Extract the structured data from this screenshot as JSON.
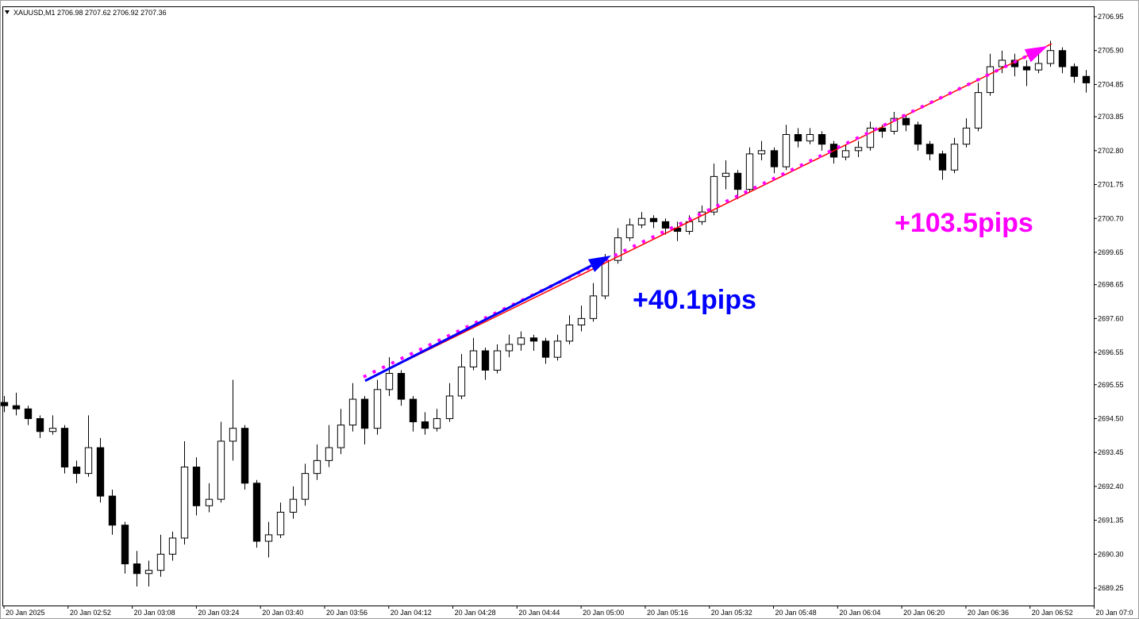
{
  "chart_data": {
    "type": "candlestick",
    "header": "XAUUSD,M1  2706.98 2707.62 2706.92 2707.36",
    "xlim": [
      155.6,
      427.9
    ],
    "ylim": [
      2688.71,
      2707.27
    ],
    "xticks": [
      {
        "value": 156,
        "label": "20 Jan 2025"
      },
      {
        "value": 172,
        "label": "20 Jan 02:52"
      },
      {
        "value": 188,
        "label": "20 Jan 03:08"
      },
      {
        "value": 204,
        "label": "20 Jan 03:24"
      },
      {
        "value": 220,
        "label": "20 Jan 03:40"
      },
      {
        "value": 236,
        "label": "20 Jan 03:56"
      },
      {
        "value": 252,
        "label": "20 Jan 04:12"
      },
      {
        "value": 268,
        "label": "20 Jan 04:28"
      },
      {
        "value": 284,
        "label": "20 Jan 04:44"
      },
      {
        "value": 300,
        "label": "20 Jan 05:00"
      },
      {
        "value": 316,
        "label": "20 Jan 05:16"
      },
      {
        "value": 332,
        "label": "20 Jan 05:32"
      },
      {
        "value": 348,
        "label": "20 Jan 05:48"
      },
      {
        "value": 364,
        "label": "20 Jan 06:04"
      },
      {
        "value": 380,
        "label": "20 Jan 06:20"
      },
      {
        "value": 396,
        "label": "20 Jan 06:36"
      },
      {
        "value": 412,
        "label": "20 Jan 06:52"
      },
      {
        "value": 428,
        "label": "20 Jan 07:0"
      }
    ],
    "yticks": [
      2706.95,
      {
        "value": 2705.9,
        "label": "2705.90"
      },
      2704.85,
      2703.85,
      {
        "value": 2702.8,
        "label": "2702.80"
      },
      2701.75,
      {
        "value": 2700.7,
        "label": "2700.70"
      },
      2699.65,
      2698.65,
      {
        "value": 2697.6,
        "label": "2697.60"
      },
      2696.55,
      2695.55,
      {
        "value": 2694.5,
        "label": "2694.50"
      },
      2693.45,
      {
        "value": 2692.4,
        "label": "2692.40"
      },
      2691.35,
      {
        "value": 2690.3,
        "label": "2690.30"
      },
      2689.25
    ],
    "up_color": "#ffffff",
    "down_color": "#000000",
    "candles": [
      [
        156,
        2695.0,
        2695.2,
        2694.7,
        2694.9
      ],
      [
        159,
        2694.9,
        2695.3,
        2694.6,
        2694.8
      ],
      [
        162,
        2694.8,
        2694.9,
        2694.3,
        2694.5
      ],
      [
        165,
        2694.5,
        2694.6,
        2693.9,
        2694.1
      ],
      [
        168,
        2694.1,
        2694.6,
        2694.0,
        2694.2
      ],
      [
        171,
        2694.2,
        2694.3,
        2692.8,
        2693.0
      ],
      [
        174,
        2693.0,
        2693.2,
        2692.5,
        2692.8
      ],
      [
        177,
        2692.8,
        2694.6,
        2692.7,
        2693.6
      ],
      [
        180,
        2693.6,
        2693.9,
        2691.9,
        2692.1
      ],
      [
        183,
        2692.1,
        2692.3,
        2690.9,
        2691.2
      ],
      [
        186,
        2691.2,
        2691.3,
        2689.7,
        2690.0
      ],
      [
        189,
        2690.0,
        2690.4,
        2689.3,
        2689.7
      ],
      [
        192,
        2689.7,
        2690.1,
        2689.3,
        2689.8
      ],
      [
        195,
        2689.8,
        2690.9,
        2689.6,
        2690.3
      ],
      [
        198,
        2690.3,
        2691.0,
        2690.1,
        2690.8
      ],
      [
        201,
        2690.8,
        2693.8,
        2690.6,
        2693.0
      ],
      [
        204,
        2693.0,
        2693.3,
        2691.5,
        2691.8
      ],
      [
        207,
        2691.8,
        2692.5,
        2691.6,
        2692.0
      ],
      [
        210,
        2692.0,
        2694.4,
        2691.9,
        2693.8
      ],
      [
        213,
        2693.8,
        2695.7,
        2693.2,
        2694.2
      ],
      [
        216,
        2694.2,
        2694.3,
        2692.3,
        2692.5
      ],
      [
        219,
        2692.5,
        2692.6,
        2690.5,
        2690.7
      ],
      [
        222,
        2690.7,
        2691.3,
        2690.2,
        2690.9
      ],
      [
        225,
        2690.9,
        2691.9,
        2690.8,
        2691.6
      ],
      [
        228,
        2691.6,
        2692.4,
        2691.4,
        2692.0
      ],
      [
        231,
        2692.0,
        2693.1,
        2691.8,
        2692.8
      ],
      [
        234,
        2692.8,
        2693.7,
        2692.6,
        2693.2
      ],
      [
        237,
        2693.2,
        2694.3,
        2693.0,
        2693.6
      ],
      [
        240,
        2693.6,
        2694.8,
        2693.4,
        2694.3
      ],
      [
        243,
        2694.3,
        2695.6,
        2694.1,
        2695.1
      ],
      [
        246,
        2695.1,
        2695.2,
        2693.7,
        2694.2
      ],
      [
        249,
        2694.2,
        2695.7,
        2694.0,
        2695.4
      ],
      [
        252,
        2695.4,
        2696.4,
        2695.2,
        2695.9
      ],
      [
        255,
        2695.9,
        2696.0,
        2694.9,
        2695.1
      ],
      [
        258,
        2695.1,
        2695.2,
        2694.1,
        2694.4
      ],
      [
        261,
        2694.4,
        2694.7,
        2694.0,
        2694.2
      ],
      [
        264,
        2694.2,
        2694.8,
        2694.1,
        2694.5
      ],
      [
        267,
        2694.5,
        2695.6,
        2694.4,
        2695.2
      ],
      [
        270,
        2695.2,
        2696.5,
        2695.1,
        2696.1
      ],
      [
        273,
        2696.1,
        2697.0,
        2696.0,
        2696.6
      ],
      [
        276,
        2696.6,
        2696.7,
        2695.7,
        2696.0
      ],
      [
        279,
        2696.0,
        2696.8,
        2695.9,
        2696.6
      ],
      [
        282,
        2696.6,
        2697.1,
        2696.4,
        2696.8
      ],
      [
        285,
        2696.8,
        2697.2,
        2696.6,
        2697.0
      ],
      [
        288,
        2697.0,
        2697.1,
        2696.6,
        2696.9
      ],
      [
        291,
        2696.9,
        2697.0,
        2696.2,
        2696.4
      ],
      [
        294,
        2696.4,
        2697.1,
        2696.3,
        2696.9
      ],
      [
        297,
        2696.9,
        2697.7,
        2696.8,
        2697.4
      ],
      [
        300,
        2697.4,
        2698.0,
        2697.2,
        2697.6
      ],
      [
        303,
        2697.6,
        2698.7,
        2697.5,
        2698.3
      ],
      [
        306,
        2698.3,
        2699.6,
        2698.2,
        2699.4
      ],
      [
        309,
        2699.4,
        2700.4,
        2699.3,
        2700.1
      ],
      [
        312,
        2700.1,
        2700.7,
        2700.0,
        2700.5
      ],
      [
        315,
        2700.5,
        2700.9,
        2700.4,
        2700.7
      ],
      [
        318,
        2700.7,
        2700.8,
        2700.4,
        2700.6
      ],
      [
        321,
        2700.6,
        2700.7,
        2700.2,
        2700.4
      ],
      [
        324,
        2700.4,
        2700.6,
        2700.0,
        2700.3
      ],
      [
        327,
        2700.3,
        2700.8,
        2700.2,
        2700.6
      ],
      [
        330,
        2700.6,
        2701.1,
        2700.5,
        2700.9
      ],
      [
        333,
        2700.9,
        2702.4,
        2700.8,
        2702.0
      ],
      [
        336,
        2702.0,
        2702.5,
        2701.6,
        2702.1
      ],
      [
        339,
        2702.1,
        2702.2,
        2701.3,
        2701.6
      ],
      [
        342,
        2701.6,
        2702.9,
        2701.5,
        2702.7
      ],
      [
        345,
        2702.7,
        2703.1,
        2702.5,
        2702.8
      ],
      [
        348,
        2702.8,
        2702.9,
        2702.1,
        2702.3
      ],
      [
        351,
        2702.3,
        2703.6,
        2702.2,
        2703.3
      ],
      [
        354,
        2703.3,
        2703.5,
        2702.9,
        2703.1
      ],
      [
        357,
        2703.1,
        2703.5,
        2703.0,
        2703.3
      ],
      [
        360,
        2703.3,
        2703.4,
        2702.8,
        2703.0
      ],
      [
        363,
        2703.0,
        2703.1,
        2702.4,
        2702.6
      ],
      [
        366,
        2702.6,
        2703.0,
        2702.5,
        2702.8
      ],
      [
        369,
        2702.8,
        2703.1,
        2702.6,
        2702.9
      ],
      [
        372,
        2702.9,
        2703.7,
        2702.8,
        2703.5
      ],
      [
        375,
        2703.5,
        2703.6,
        2703.2,
        2703.4
      ],
      [
        378,
        2703.4,
        2704.0,
        2703.3,
        2703.8
      ],
      [
        381,
        2703.8,
        2703.9,
        2703.4,
        2703.6
      ],
      [
        384,
        2703.6,
        2703.7,
        2702.8,
        2703.0
      ],
      [
        387,
        2703.0,
        2703.1,
        2702.5,
        2702.7
      ],
      [
        390,
        2702.7,
        2702.8,
        2701.9,
        2702.2
      ],
      [
        393,
        2702.2,
        2703.2,
        2702.1,
        2703.0
      ],
      [
        396,
        2703.0,
        2703.8,
        2702.9,
        2703.5
      ],
      [
        399,
        2703.5,
        2704.9,
        2703.4,
        2704.6
      ],
      [
        402,
        2704.6,
        2705.8,
        2704.5,
        2705.4
      ],
      [
        405,
        2705.4,
        2705.9,
        2705.2,
        2705.6
      ],
      [
        408,
        2705.6,
        2705.8,
        2705.1,
        2705.4
      ],
      [
        411,
        2705.4,
        2705.6,
        2704.8,
        2705.3
      ],
      [
        414,
        2705.3,
        2705.8,
        2705.2,
        2705.5
      ],
      [
        417,
        2705.5,
        2706.2,
        2705.4,
        2705.9
      ],
      [
        420,
        2705.9,
        2706.0,
        2705.2,
        2705.4
      ],
      [
        423,
        2705.4,
        2705.5,
        2704.9,
        2705.1
      ],
      [
        426,
        2705.1,
        2705.3,
        2704.6,
        2704.9
      ]
    ],
    "annotations": [
      {
        "kind": "line",
        "color": "#ff0000",
        "x": [
          246.1,
          417.4
        ],
        "y": [
          2695.67,
          2706.11
        ]
      },
      {
        "kind": "dotted-arrow",
        "color": "#ff00ff",
        "x": [
          245.7,
          416.4
        ],
        "y": [
          2695.79,
          2706.04
        ]
      },
      {
        "kind": "arrow",
        "color": "#0000ff",
        "x": [
          246.1,
          307.5
        ],
        "y": [
          2695.67,
          2699.55
        ]
      }
    ],
    "annotation_texts": [
      {
        "text": "+40.1pips",
        "color": "#0000ff"
      },
      {
        "text": "+103.5pips",
        "color": "#ff00ff"
      }
    ]
  }
}
